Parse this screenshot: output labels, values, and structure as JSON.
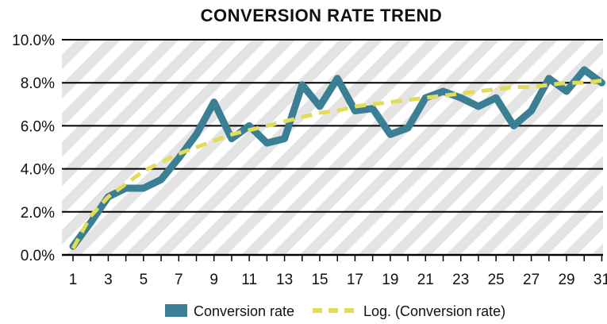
{
  "chart_data": {
    "type": "line",
    "title": "CONVERSION RATE TREND",
    "xlabel": "",
    "ylabel": "",
    "x": [
      1,
      2,
      3,
      4,
      5,
      6,
      7,
      8,
      9,
      10,
      11,
      12,
      13,
      14,
      15,
      16,
      17,
      18,
      19,
      20,
      21,
      22,
      23,
      24,
      25,
      26,
      27,
      28,
      29,
      30,
      31
    ],
    "x_tick_labels": [
      "1",
      "3",
      "5",
      "7",
      "9",
      "11",
      "13",
      "15",
      "17",
      "19",
      "21",
      "23",
      "25",
      "27",
      "29",
      "31"
    ],
    "y_tick_labels": [
      "0.0%",
      "2.0%",
      "4.0%",
      "6.0%",
      "8.0%",
      "10.0%"
    ],
    "ylim": [
      0,
      10
    ],
    "grid": true,
    "legend_position": "bottom",
    "series": [
      {
        "name": "Conversion rate",
        "style": "solid",
        "color": "#3a7f93",
        "values": [
          0.4,
          1.5,
          2.7,
          3.1,
          3.1,
          3.5,
          4.5,
          5.6,
          7.1,
          5.4,
          6.0,
          5.2,
          5.4,
          7.9,
          6.9,
          8.2,
          6.7,
          6.8,
          5.6,
          5.9,
          7.3,
          7.6,
          7.3,
          6.9,
          7.3,
          6.0,
          6.7,
          8.2,
          7.6,
          8.6,
          8.0
        ]
      },
      {
        "name": "Log. (Conversion rate)",
        "style": "dashed",
        "color": "#e2dc59",
        "values": [
          0.3,
          1.8,
          2.7,
          3.3,
          3.9,
          4.3,
          4.7,
          5.0,
          5.3,
          5.6,
          5.8,
          6.0,
          6.2,
          6.4,
          6.6,
          6.7,
          6.9,
          7.0,
          7.1,
          7.2,
          7.3,
          7.4,
          7.5,
          7.6,
          7.7,
          7.8,
          7.8,
          7.9,
          8.0,
          8.0,
          8.1
        ]
      }
    ]
  }
}
